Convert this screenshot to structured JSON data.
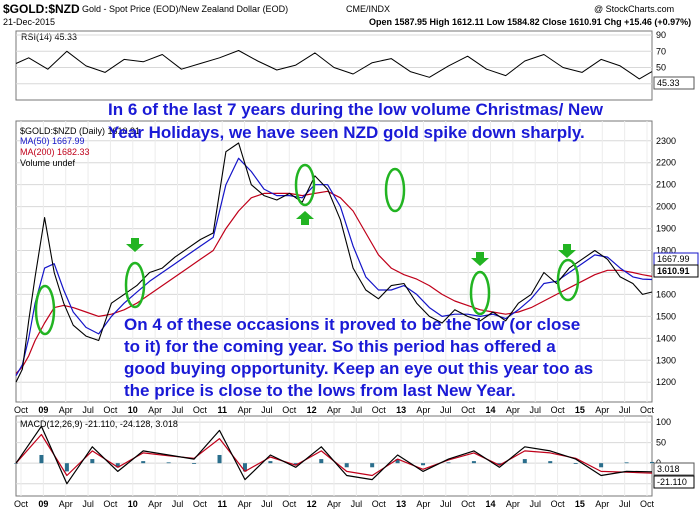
{
  "header": {
    "symbol": "$GOLD:$NZD",
    "title": "Gold - Spot Price (EOD)/New Zealand Dollar (EOD)",
    "exchange": "CME/INDX",
    "watermark": "@ StockCharts.com",
    "date": "21-Dec-2015",
    "ohlc": "Open 1587.95  High 1612.11  Low 1584.82  Close 1610.91  Chg +15.46 (+0.97%)"
  },
  "colors": {
    "price": "#000000",
    "ma50": "#1414c8",
    "ma200": "#c0001a",
    "annotation": "#1a1ad6",
    "highlight_ring": "#22b422",
    "arrow": "#22b422",
    "macd": "#000000",
    "signal": "#c0001a",
    "histogram": "#2a6e8c"
  },
  "annotations": {
    "top": [
      "In 6 of the last 7 years during the low volume Christmas/ New",
      "Year Holidays, we have seen NZD gold spike down sharply."
    ],
    "bottom": [
      "On 4 of these occasions it proved to be the low (or close",
      "to it) for the coming year. So this period has offered a",
      "good buying opportunity. Keep an eye out this year too as",
      "the price is close to the lows from last New Year."
    ]
  },
  "chart_data": [
    {
      "type": "line",
      "name": "RSI panel",
      "legend": "RSI(14) 45.33",
      "current": 45.33,
      "y_ticks": [
        30,
        50,
        70,
        90
      ],
      "ylim": [
        10,
        95
      ],
      "x": [
        0,
        0.02,
        0.05,
        0.08,
        0.11,
        0.14,
        0.17,
        0.2,
        0.23,
        0.26,
        0.29,
        0.32,
        0.35,
        0.38,
        0.41,
        0.44,
        0.47,
        0.5,
        0.53,
        0.56,
        0.59,
        0.62,
        0.65,
        0.68,
        0.71,
        0.74,
        0.77,
        0.8,
        0.83,
        0.86,
        0.89,
        0.92,
        0.95,
        0.98,
        1.0
      ],
      "values": [
        55,
        62,
        48,
        70,
        52,
        44,
        60,
        57,
        66,
        48,
        55,
        62,
        71,
        58,
        47,
        53,
        68,
        50,
        42,
        56,
        61,
        45,
        38,
        52,
        64,
        48,
        40,
        58,
        66,
        50,
        44,
        60,
        52,
        36,
        45
      ]
    },
    {
      "type": "line",
      "name": "Price panel",
      "legend": [
        "$GOLD:$NZD (Daily) 1610.91",
        "MA(50) 1667.99",
        "MA(200) 1682.33",
        "Volume undef"
      ],
      "y_ticks": [
        1200,
        1300,
        1400,
        1500,
        1600,
        1700,
        1800,
        1900,
        2000,
        2100,
        2200,
        2300
      ],
      "ylim": [
        1110,
        2390
      ],
      "x_labels": [
        "Oct",
        "09",
        "Apr",
        "Jul",
        "Oct",
        "10",
        "Apr",
        "Jul",
        "Oct",
        "11",
        "Apr",
        "Jul",
        "Oct",
        "12",
        "Apr",
        "Jul",
        "Oct",
        "13",
        "Apr",
        "Jul",
        "Oct",
        "14",
        "Apr",
        "Jul",
        "Oct",
        "15",
        "Apr",
        "Jul",
        "Oct"
      ],
      "current_labels": {
        "ma50": "1667.99",
        "close": "1610.91"
      },
      "x": [
        0,
        0.01,
        0.02,
        0.03,
        0.045,
        0.06,
        0.075,
        0.09,
        0.11,
        0.13,
        0.15,
        0.17,
        0.19,
        0.21,
        0.23,
        0.25,
        0.27,
        0.29,
        0.31,
        0.33,
        0.35,
        0.37,
        0.39,
        0.41,
        0.43,
        0.45,
        0.47,
        0.49,
        0.51,
        0.53,
        0.55,
        0.57,
        0.59,
        0.61,
        0.63,
        0.65,
        0.67,
        0.69,
        0.71,
        0.73,
        0.75,
        0.77,
        0.79,
        0.81,
        0.83,
        0.85,
        0.87,
        0.89,
        0.91,
        0.93,
        0.95,
        0.97,
        0.985,
        1.0
      ],
      "price": [
        1200,
        1260,
        1480,
        1680,
        1950,
        1700,
        1560,
        1460,
        1410,
        1390,
        1560,
        1600,
        1640,
        1700,
        1720,
        1770,
        1810,
        1850,
        1880,
        2250,
        2290,
        2100,
        2050,
        2030,
        2060,
        2020,
        2140,
        2080,
        1940,
        1720,
        1620,
        1580,
        1640,
        1650,
        1560,
        1500,
        1470,
        1530,
        1500,
        1480,
        1520,
        1480,
        1560,
        1600,
        1700,
        1650,
        1720,
        1760,
        1800,
        1760,
        1680,
        1650,
        1600,
        1611
      ],
      "ma50": [
        1230,
        1280,
        1400,
        1560,
        1720,
        1740,
        1620,
        1520,
        1450,
        1420,
        1500,
        1560,
        1610,
        1660,
        1700,
        1740,
        1780,
        1820,
        1860,
        2100,
        2220,
        2160,
        2080,
        2050,
        2050,
        2040,
        2100,
        2100,
        2000,
        1820,
        1680,
        1620,
        1620,
        1640,
        1600,
        1540,
        1500,
        1510,
        1510,
        1500,
        1510,
        1490,
        1530,
        1580,
        1650,
        1660,
        1700,
        1740,
        1780,
        1770,
        1720,
        1680,
        1670,
        1668
      ],
      "ma200": [
        1240,
        1270,
        1320,
        1390,
        1470,
        1540,
        1550,
        1540,
        1520,
        1500,
        1510,
        1530,
        1560,
        1600,
        1640,
        1680,
        1720,
        1760,
        1800,
        1900,
        1980,
        2040,
        2060,
        2060,
        2060,
        2050,
        2060,
        2070,
        2040,
        1980,
        1880,
        1780,
        1720,
        1690,
        1670,
        1640,
        1600,
        1570,
        1550,
        1530,
        1520,
        1510,
        1520,
        1540,
        1570,
        1600,
        1630,
        1660,
        1690,
        1710,
        1710,
        1700,
        1690,
        1682
      ]
    },
    {
      "type": "line",
      "name": "MACD panel",
      "legend": [
        "MACD(12,26,9) -21.110, -24.128, 3.018"
      ],
      "current_labels": {
        "histogram": "3.018",
        "macd": "-21.110"
      },
      "y_ticks": [
        -50,
        0,
        50,
        100
      ],
      "ylim": [
        -80,
        115
      ],
      "x": [
        0,
        0.04,
        0.08,
        0.12,
        0.16,
        0.2,
        0.24,
        0.28,
        0.32,
        0.36,
        0.4,
        0.44,
        0.48,
        0.52,
        0.56,
        0.6,
        0.64,
        0.68,
        0.72,
        0.76,
        0.8,
        0.84,
        0.88,
        0.92,
        0.96,
        1.0
      ],
      "macd": [
        0,
        90,
        -50,
        40,
        -20,
        30,
        20,
        10,
        80,
        -40,
        20,
        -10,
        40,
        -30,
        -40,
        20,
        -20,
        10,
        30,
        -10,
        40,
        30,
        10,
        -30,
        -20,
        -21.11
      ],
      "signal": [
        0,
        70,
        -30,
        30,
        -10,
        25,
        18,
        12,
        60,
        -20,
        15,
        -5,
        30,
        -20,
        -30,
        10,
        -15,
        8,
        25,
        -5,
        30,
        25,
        12,
        -20,
        -22,
        -24.128
      ]
    }
  ]
}
